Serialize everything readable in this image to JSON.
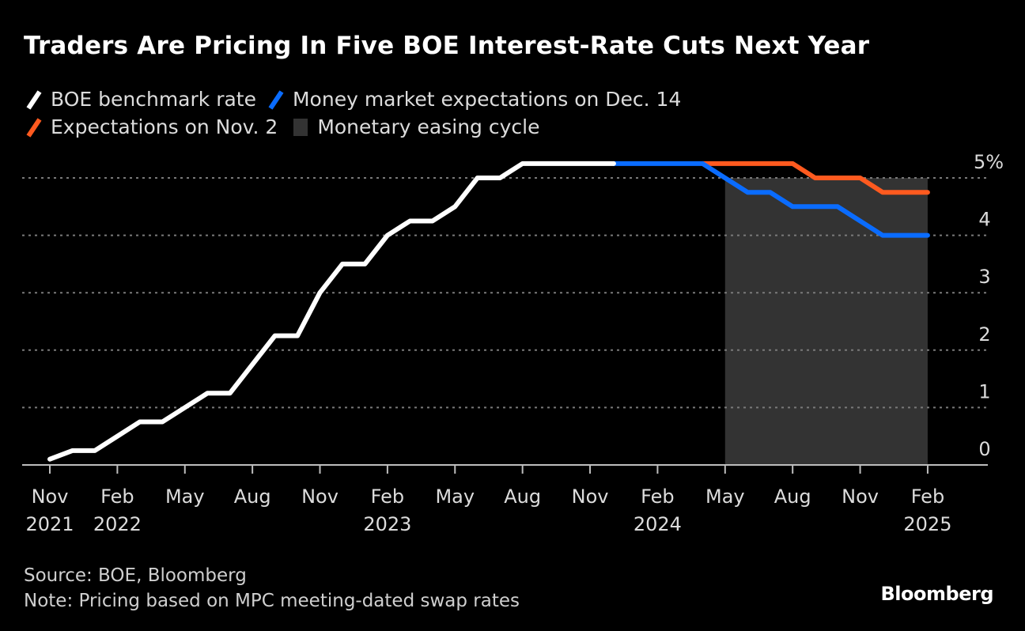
{
  "header": {
    "title": "Traders Are Pricing In Five BOE Interest-Rate Cuts Next Year"
  },
  "legend": {
    "items": [
      {
        "label": "BOE benchmark rate",
        "color": "#ffffff",
        "kind": "line"
      },
      {
        "label": "Money market expectations on Dec. 14",
        "color": "#0a6cff",
        "kind": "line"
      },
      {
        "label": "Expectations on Nov. 2",
        "color": "#ff5a1f",
        "kind": "line"
      },
      {
        "label": "Monetary easing cycle",
        "color": "#333333",
        "kind": "area"
      }
    ]
  },
  "footer": {
    "source": "Source: BOE, Bloomberg",
    "note": "Note: Pricing based on MPC meeting-dated swap rates",
    "brand": "Bloomberg"
  },
  "chart_data": {
    "type": "line",
    "title": "Traders Are Pricing In Five BOE Interest-Rate Cuts Next Year",
    "xlabel": "",
    "ylabel": "",
    "x_unit": "months since Nov 2021",
    "ylim": [
      0,
      5.25
    ],
    "y_ticks": [
      0,
      1,
      2,
      3,
      4,
      5
    ],
    "y_tick_labels": [
      "0",
      "1",
      "2",
      "3",
      "4",
      "5%"
    ],
    "y_axis_position": "right",
    "grid": true,
    "x_ticks": [
      {
        "m": 0,
        "label": "Nov",
        "year": "2021"
      },
      {
        "m": 3,
        "label": "Feb",
        "year": "2022"
      },
      {
        "m": 6,
        "label": "May",
        "year": ""
      },
      {
        "m": 9,
        "label": "Aug",
        "year": ""
      },
      {
        "m": 12,
        "label": "Nov",
        "year": ""
      },
      {
        "m": 15,
        "label": "Feb",
        "year": "2023"
      },
      {
        "m": 18,
        "label": "May",
        "year": ""
      },
      {
        "m": 21,
        "label": "Aug",
        "year": ""
      },
      {
        "m": 24,
        "label": "Nov",
        "year": ""
      },
      {
        "m": 27,
        "label": "Feb",
        "year": "2024"
      },
      {
        "m": 30,
        "label": "May",
        "year": ""
      },
      {
        "m": 33,
        "label": "Aug",
        "year": ""
      },
      {
        "m": 36,
        "label": "Nov",
        "year": ""
      },
      {
        "m": 39,
        "label": "Feb",
        "year": "2025"
      }
    ],
    "x_max": 41.7,
    "shaded_region": {
      "label": "Monetary easing cycle",
      "from_m": 30,
      "to_m": 39,
      "color": "#333333"
    },
    "series": [
      {
        "name": "BOE benchmark rate",
        "color": "#ffffff",
        "points": [
          [
            0,
            0.1
          ],
          [
            1,
            0.25
          ],
          [
            2,
            0.25
          ],
          [
            3,
            0.5
          ],
          [
            4,
            0.75
          ],
          [
            5,
            0.75
          ],
          [
            6,
            1.0
          ],
          [
            7,
            1.25
          ],
          [
            8,
            1.25
          ],
          [
            9,
            1.75
          ],
          [
            10,
            2.25
          ],
          [
            11,
            2.25
          ],
          [
            12,
            3.0
          ],
          [
            13,
            3.5
          ],
          [
            14,
            3.5
          ],
          [
            15,
            4.0
          ],
          [
            16,
            4.25
          ],
          [
            17,
            4.25
          ],
          [
            18,
            4.5
          ],
          [
            19,
            5.0
          ],
          [
            20,
            5.0
          ],
          [
            21,
            5.25
          ],
          [
            22,
            5.25
          ],
          [
            23,
            5.25
          ],
          [
            24,
            5.25
          ],
          [
            25.05,
            5.25
          ]
        ]
      },
      {
        "name": "Money market expectations on Dec. 14",
        "color": "#0a6cff",
        "points": [
          [
            25.05,
            5.25
          ],
          [
            29,
            5.25
          ],
          [
            31,
            4.75
          ],
          [
            32,
            4.75
          ],
          [
            33,
            4.5
          ],
          [
            35,
            4.5
          ],
          [
            37,
            4.0
          ],
          [
            39,
            4.0
          ]
        ]
      },
      {
        "name": "Expectations on Nov. 2",
        "color": "#ff5a1f",
        "points": [
          [
            29,
            5.25
          ],
          [
            33,
            5.25
          ],
          [
            34,
            5.0
          ],
          [
            36,
            5.0
          ],
          [
            37,
            4.75
          ],
          [
            39,
            4.75
          ]
        ]
      }
    ]
  }
}
